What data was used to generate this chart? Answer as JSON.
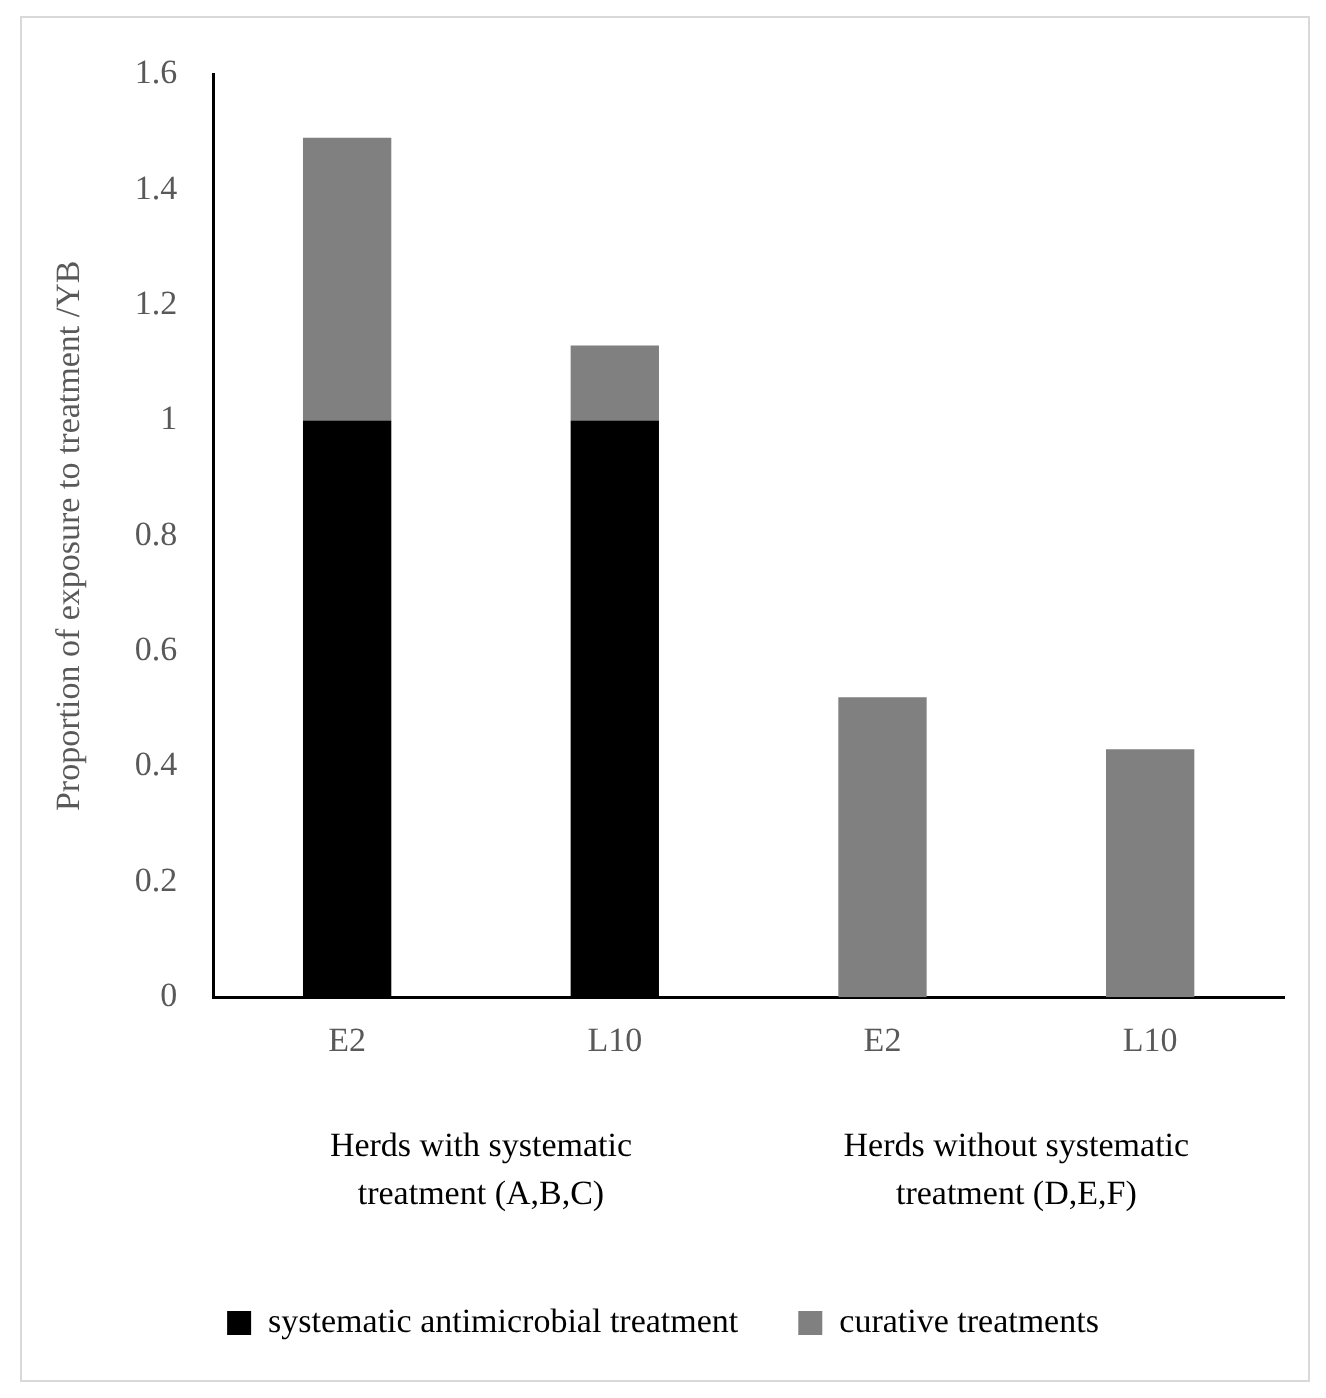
{
  "chart_data": {
    "type": "bar",
    "stacked": true,
    "ylabel": "Proportion of exposure to treatment /YB",
    "categories": [
      "E2",
      "L10",
      "E2",
      "L10"
    ],
    "series": [
      {
        "name": "systematic antimicrobial treatment",
        "color": "#000000",
        "values": [
          1,
          1,
          0,
          0
        ]
      },
      {
        "name": "curative treatments",
        "color": "#808080",
        "values": [
          0.49,
          0.13,
          0.52,
          0.43
        ]
      }
    ],
    "ylim": [
      0,
      1.6
    ],
    "yticks": [
      0,
      0.2,
      0.4,
      0.6,
      0.8,
      1,
      1.2,
      1.4,
      1.6
    ],
    "grid": false,
    "legend": "bottom",
    "annotations": [
      "Herds with systematic treatment (A,B,C)",
      "Herds without systematic treatment (D,E,F)"
    ]
  }
}
